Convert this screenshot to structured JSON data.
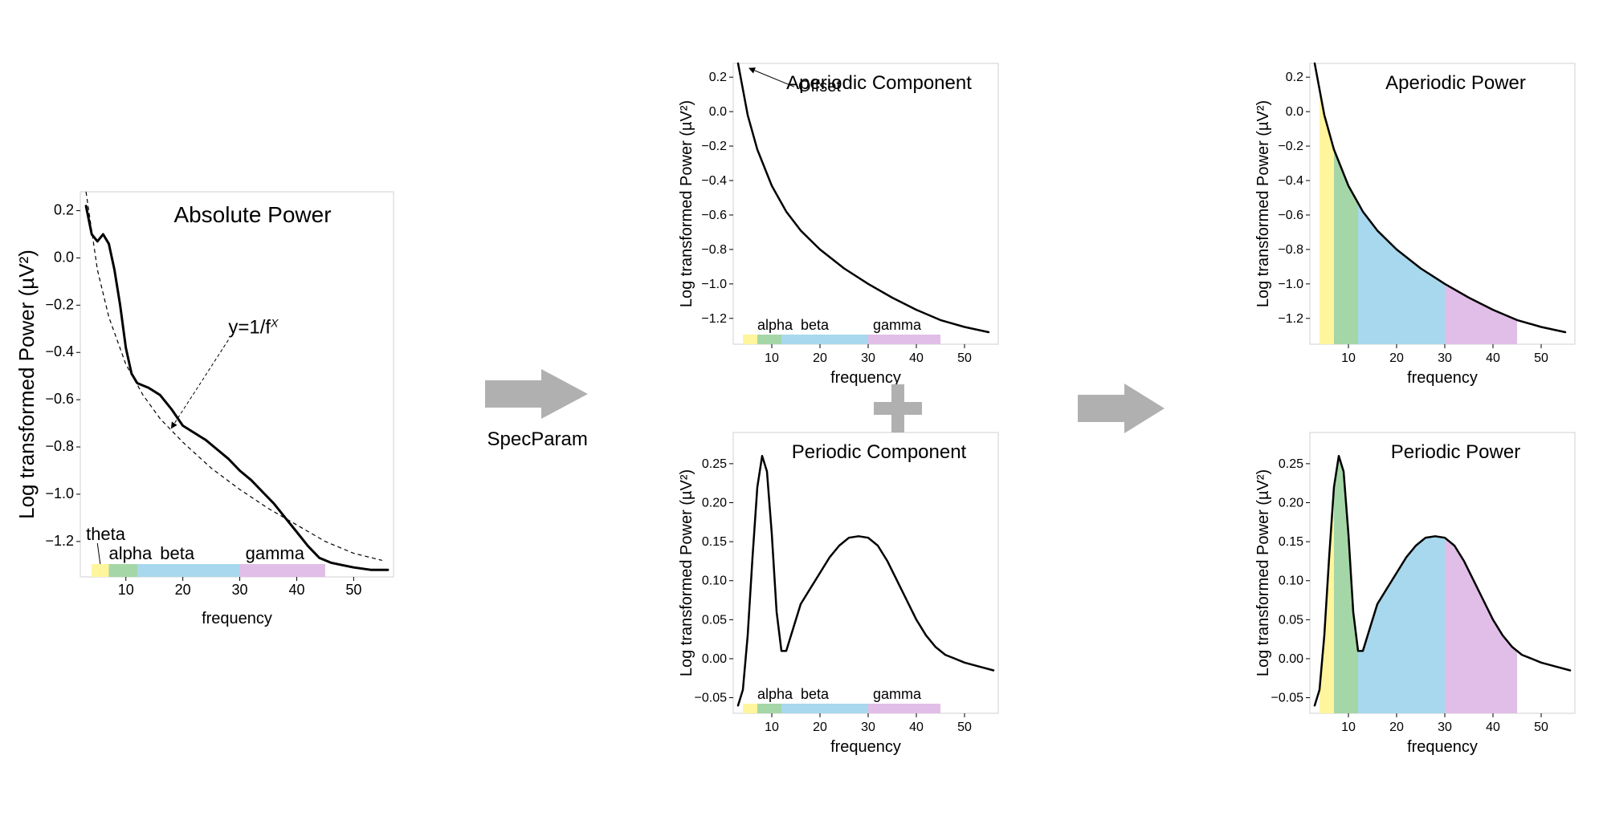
{
  "figure": {
    "background_color": "#ffffff",
    "arrow_color": "#b0b0b0",
    "plus_color": "#b0b0b0",
    "specparam_label": "SpecParam",
    "bands": {
      "theta": {
        "name": "theta",
        "start": 4,
        "end": 7,
        "color": "#fff59d"
      },
      "alpha": {
        "name": "alpha",
        "start": 7,
        "end": 12,
        "color": "#a5d6a7"
      },
      "beta": {
        "name": "beta",
        "start": 12,
        "end": 30,
        "color": "#a7d8ed"
      },
      "gamma": {
        "name": "gamma",
        "start": 30,
        "end": 45,
        "color": "#e1bee7"
      }
    },
    "x": {
      "label": "frequency",
      "min": 2,
      "max": 57,
      "ticks": [
        10,
        20,
        30,
        40,
        50
      ]
    },
    "panels": {
      "absolute": {
        "title": "Absolute Power",
        "ylabel": "Log transformed Power (µV²)",
        "ymin": -1.35,
        "ymax": 0.28,
        "yticks": [
          0.2,
          0.0,
          -0.2,
          -0.4,
          -0.6,
          -0.8,
          -1.0,
          -1.2
        ],
        "formula": "y=1/f",
        "formula_exp": "X",
        "curve_color": "#000000",
        "curve_width": 3,
        "dash_color": "#000000",
        "dash_width": 1.2,
        "band_bar": true,
        "band_fill_full": false,
        "show_formula": true,
        "show_offset": false,
        "big": true,
        "data": [
          [
            3,
            0.22
          ],
          [
            4,
            0.1
          ],
          [
            5,
            0.07
          ],
          [
            6,
            0.1
          ],
          [
            7,
            0.06
          ],
          [
            8,
            -0.05
          ],
          [
            9,
            -0.2
          ],
          [
            10,
            -0.38
          ],
          [
            11,
            -0.49
          ],
          [
            12,
            -0.53
          ],
          [
            14,
            -0.55
          ],
          [
            16,
            -0.58
          ],
          [
            18,
            -0.64
          ],
          [
            20,
            -0.71
          ],
          [
            22,
            -0.74
          ],
          [
            24,
            -0.77
          ],
          [
            26,
            -0.81
          ],
          [
            28,
            -0.85
          ],
          [
            30,
            -0.9
          ],
          [
            32,
            -0.94
          ],
          [
            34,
            -0.99
          ],
          [
            36,
            -1.04
          ],
          [
            38,
            -1.1
          ],
          [
            40,
            -1.16
          ],
          [
            42,
            -1.22
          ],
          [
            44,
            -1.27
          ],
          [
            46,
            -1.29
          ],
          [
            48,
            -1.3
          ],
          [
            50,
            -1.31
          ],
          [
            53,
            -1.32
          ],
          [
            56,
            -1.32
          ]
        ],
        "fit": [
          [
            3,
            0.28
          ],
          [
            5,
            -0.05
          ],
          [
            7,
            -0.25
          ],
          [
            10,
            -0.45
          ],
          [
            13,
            -0.58
          ],
          [
            16,
            -0.68
          ],
          [
            20,
            -0.78
          ],
          [
            25,
            -0.89
          ],
          [
            30,
            -0.98
          ],
          [
            35,
            -1.06
          ],
          [
            40,
            -1.13
          ],
          [
            45,
            -1.2
          ],
          [
            50,
            -1.25
          ],
          [
            55,
            -1.28
          ]
        ]
      },
      "aperiodic_comp": {
        "title": "Aperiodic Component",
        "ylabel": "Log transformed Power (µV²)",
        "ymin": -1.35,
        "ymax": 0.28,
        "yticks": [
          0.2,
          0.0,
          -0.2,
          -0.4,
          -0.6,
          -0.8,
          -1.0,
          -1.2
        ],
        "curve_color": "#000000",
        "curve_width": 2.5,
        "band_bar": true,
        "band_fill_full": false,
        "show_formula": false,
        "show_offset": true,
        "offset_label": "Offset",
        "big": false,
        "data": [
          [
            3,
            0.28
          ],
          [
            5,
            -0.02
          ],
          [
            7,
            -0.22
          ],
          [
            10,
            -0.43
          ],
          [
            13,
            -0.58
          ],
          [
            16,
            -0.69
          ],
          [
            20,
            -0.8
          ],
          [
            25,
            -0.91
          ],
          [
            30,
            -1.0
          ],
          [
            35,
            -1.08
          ],
          [
            40,
            -1.15
          ],
          [
            45,
            -1.21
          ],
          [
            50,
            -1.25
          ],
          [
            55,
            -1.28
          ]
        ]
      },
      "periodic_comp": {
        "title": "Periodic Component",
        "ylabel": "Log transformed Power (µV²)",
        "ymin": -0.07,
        "ymax": 0.29,
        "yticks": [
          0.25,
          0.2,
          0.15,
          0.1,
          0.05,
          0.0,
          -0.05
        ],
        "curve_color": "#000000",
        "curve_width": 2.5,
        "band_bar": true,
        "band_fill_full": false,
        "show_formula": false,
        "show_offset": false,
        "big": false,
        "data": [
          [
            3,
            -0.06
          ],
          [
            4,
            -0.04
          ],
          [
            5,
            0.03
          ],
          [
            6,
            0.13
          ],
          [
            7,
            0.22
          ],
          [
            8,
            0.26
          ],
          [
            9,
            0.24
          ],
          [
            10,
            0.16
          ],
          [
            11,
            0.06
          ],
          [
            12,
            0.01
          ],
          [
            13,
            0.01
          ],
          [
            14,
            0.03
          ],
          [
            15,
            0.05
          ],
          [
            16,
            0.07
          ],
          [
            18,
            0.09
          ],
          [
            20,
            0.11
          ],
          [
            22,
            0.13
          ],
          [
            24,
            0.145
          ],
          [
            26,
            0.155
          ],
          [
            28,
            0.157
          ],
          [
            30,
            0.155
          ],
          [
            32,
            0.145
          ],
          [
            34,
            0.125
          ],
          [
            36,
            0.1
          ],
          [
            38,
            0.075
          ],
          [
            40,
            0.05
          ],
          [
            42,
            0.03
          ],
          [
            44,
            0.015
          ],
          [
            46,
            0.005
          ],
          [
            48,
            0.0
          ],
          [
            50,
            -0.005
          ],
          [
            53,
            -0.01
          ],
          [
            56,
            -0.015
          ]
        ]
      },
      "aperiodic_power": {
        "title": "Aperiodic Power",
        "ylabel": "Log transformed Power (µV²)",
        "ymin": -1.35,
        "ymax": 0.28,
        "yticks": [
          0.2,
          0.0,
          -0.2,
          -0.4,
          -0.6,
          -0.8,
          -1.0,
          -1.2
        ],
        "curve_color": "#000000",
        "curve_width": 2.5,
        "band_bar": false,
        "band_fill_full": true,
        "show_formula": false,
        "show_offset": false,
        "big": false,
        "data": [
          [
            3,
            0.28
          ],
          [
            5,
            -0.02
          ],
          [
            7,
            -0.22
          ],
          [
            10,
            -0.43
          ],
          [
            13,
            -0.58
          ],
          [
            16,
            -0.69
          ],
          [
            20,
            -0.8
          ],
          [
            25,
            -0.91
          ],
          [
            30,
            -1.0
          ],
          [
            35,
            -1.08
          ],
          [
            40,
            -1.15
          ],
          [
            45,
            -1.21
          ],
          [
            50,
            -1.25
          ],
          [
            55,
            -1.28
          ]
        ]
      },
      "periodic_power": {
        "title": "Periodic Power",
        "ylabel": "Log transformed Power (µV²)",
        "ymin": -0.07,
        "ymax": 0.29,
        "yticks": [
          0.25,
          0.2,
          0.15,
          0.1,
          0.05,
          0.0,
          -0.05
        ],
        "curve_color": "#000000",
        "curve_width": 2.5,
        "band_bar": false,
        "band_fill_full": true,
        "show_formula": false,
        "show_offset": false,
        "big": false,
        "data": [
          [
            3,
            -0.06
          ],
          [
            4,
            -0.04
          ],
          [
            5,
            0.03
          ],
          [
            6,
            0.13
          ],
          [
            7,
            0.22
          ],
          [
            8,
            0.26
          ],
          [
            9,
            0.24
          ],
          [
            10,
            0.16
          ],
          [
            11,
            0.06
          ],
          [
            12,
            0.01
          ],
          [
            13,
            0.01
          ],
          [
            14,
            0.03
          ],
          [
            15,
            0.05
          ],
          [
            16,
            0.07
          ],
          [
            18,
            0.09
          ],
          [
            20,
            0.11
          ],
          [
            22,
            0.13
          ],
          [
            24,
            0.145
          ],
          [
            26,
            0.155
          ],
          [
            28,
            0.157
          ],
          [
            30,
            0.155
          ],
          [
            32,
            0.145
          ],
          [
            34,
            0.125
          ],
          [
            36,
            0.1
          ],
          [
            38,
            0.075
          ],
          [
            40,
            0.05
          ],
          [
            42,
            0.03
          ],
          [
            44,
            0.015
          ],
          [
            46,
            0.005
          ],
          [
            48,
            0.0
          ],
          [
            50,
            -0.005
          ],
          [
            53,
            -0.01
          ],
          [
            56,
            -0.015
          ]
        ]
      }
    }
  }
}
